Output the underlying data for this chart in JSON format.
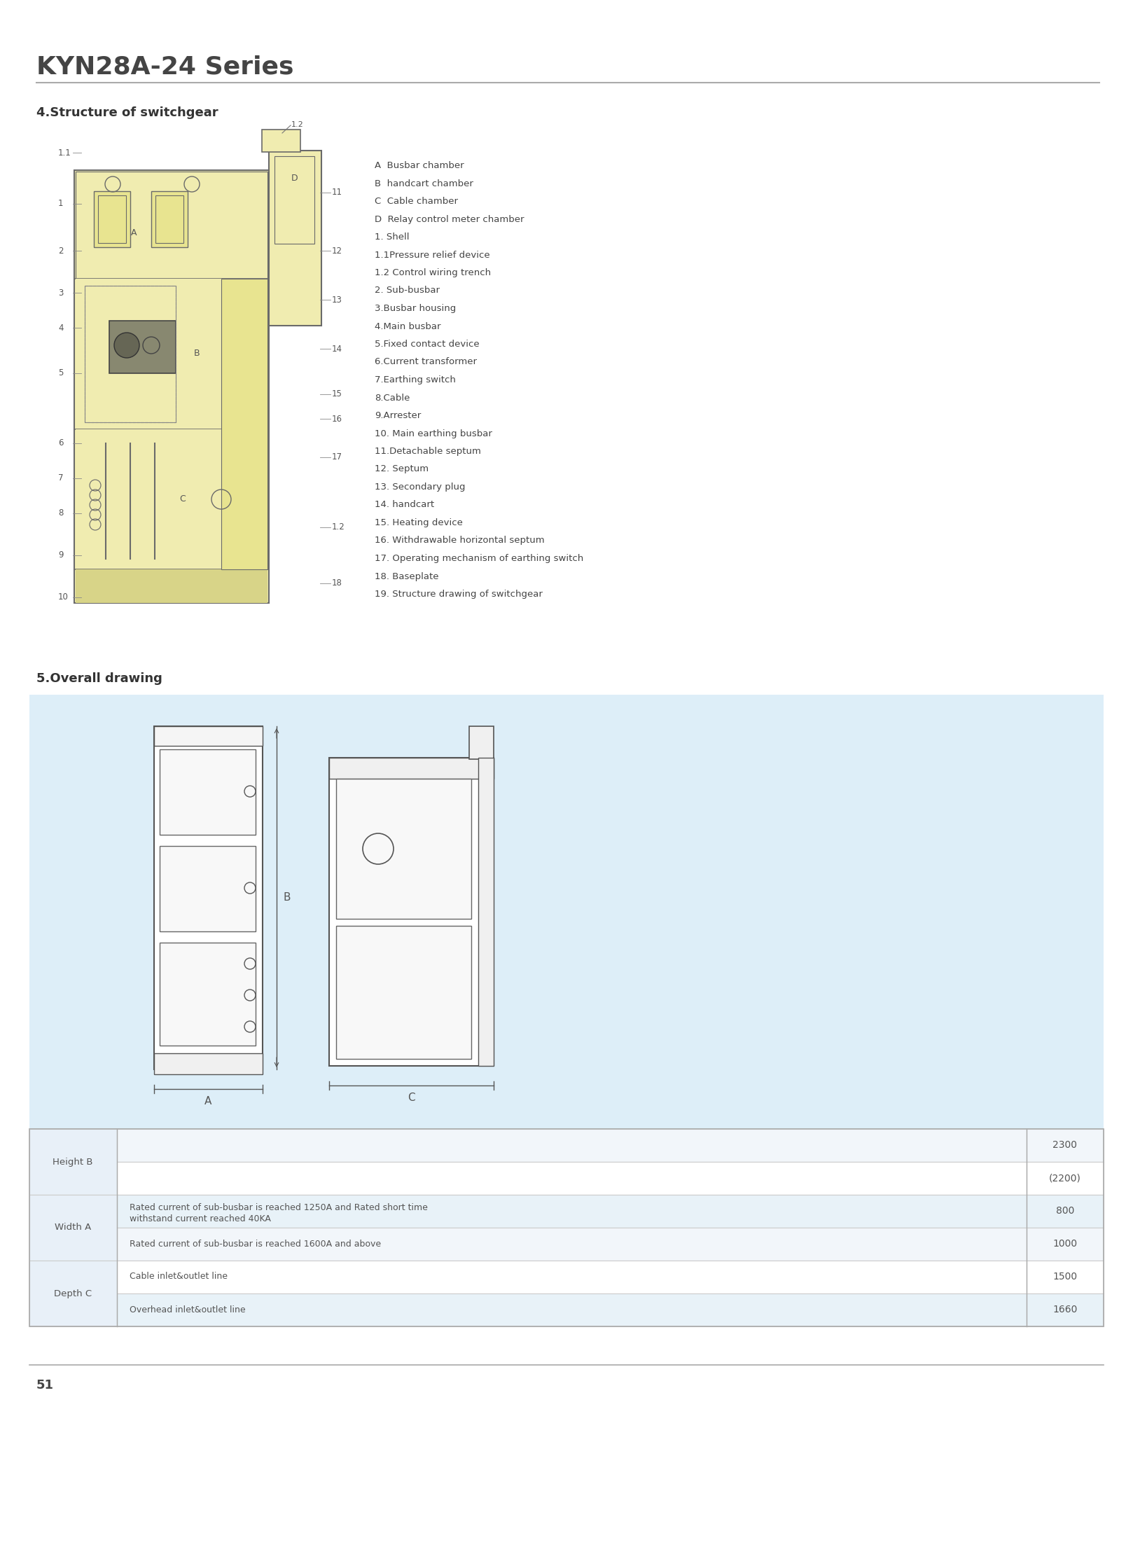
{
  "title": "KYN28A-24 Series",
  "section4_title": "4.Structure of switchgear",
  "section5_title": "5.Overall drawing",
  "bg_color": "#ffffff",
  "drawing_bg": "#f0ecb0",
  "light_blue_bg": "#ddeef8",
  "legend_items": [
    "A  Busbar chamber",
    "B  handcart chamber",
    "C  Cable chamber",
    "D  Relay control meter chamber",
    "1. Shell",
    "1.1Pressure relief device",
    "1.2 Control wiring trench",
    "2. Sub-busbar",
    "3.Busbar housing",
    "4.Main busbar",
    "5.Fixed contact device",
    "6.Current transformer",
    "7.Earthing switch",
    "8.Cable",
    "9.Arrester",
    "10. Main earthing busbar",
    "11.Detachable septum",
    "12. Septum",
    "13. Secondary plug",
    "14. handcart",
    "15. Heating device",
    "16. Withdrawable horizontal septum",
    "17. Operating mechanism of earthing switch",
    "18. Baseplate",
    "19. Structure drawing of switchgear"
  ],
  "page_number": "51"
}
